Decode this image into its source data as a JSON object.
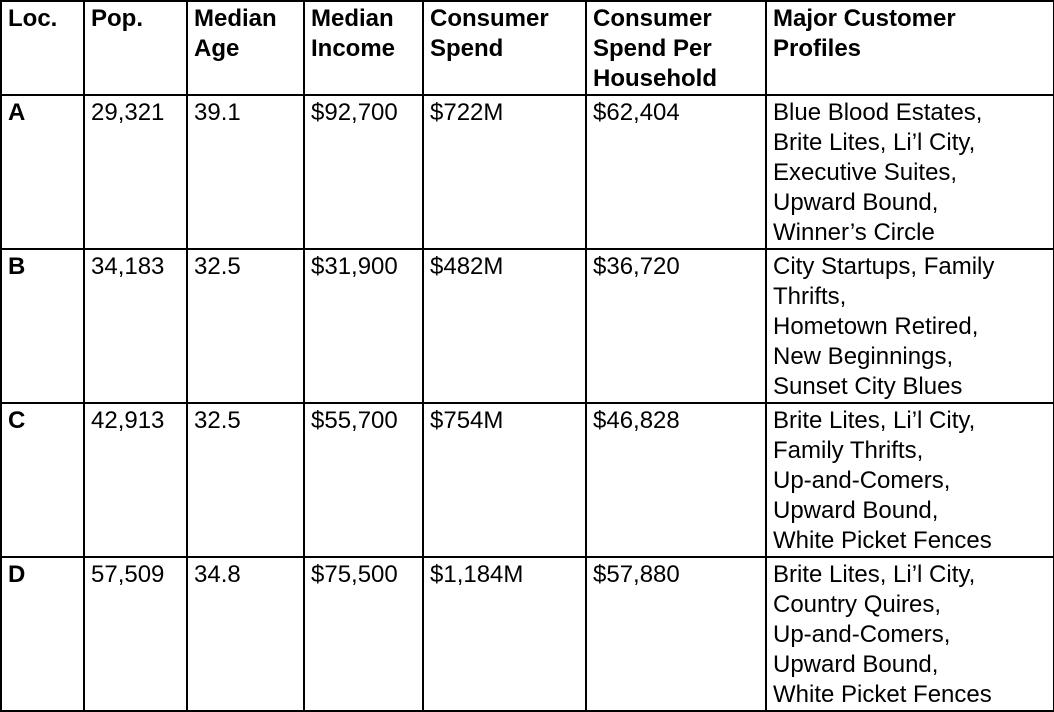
{
  "table": {
    "headers": [
      [
        "Loc."
      ],
      [
        "Pop."
      ],
      [
        "Median",
        "Age"
      ],
      [
        "Median",
        "Income"
      ],
      [
        "Consumer",
        "Spend"
      ],
      [
        "Consumer",
        "Spend Per",
        "Household"
      ],
      [
        "Major Customer",
        "Profiles"
      ]
    ],
    "rows": [
      {
        "loc": "A",
        "pop": "29,321",
        "median_age": "39.1",
        "median_income": "$92,700",
        "consumer_spend": "$722M",
        "spend_per_household": "$62,404",
        "profiles": [
          "Blue Blood Estates,",
          "Brite Lites, Li’l City,",
          "Executive Suites,",
          "Upward Bound,",
          "Winner’s Circle"
        ]
      },
      {
        "loc": "B",
        "pop": "34,183",
        "median_age": "32.5",
        "median_income": "$31,900",
        "consumer_spend": "$482M",
        "spend_per_household": "$36,720",
        "profiles": [
          "City Startups, Family",
          "Thrifts,",
          "Hometown Retired,",
          "New Beginnings,",
          "Sunset City Blues"
        ]
      },
      {
        "loc": "C",
        "pop": "42,913",
        "median_age": "32.5",
        "median_income": "$55,700",
        "consumer_spend": "$754M",
        "spend_per_household": "$46,828",
        "profiles": [
          "Brite Lites, Li’l City,",
          "Family Thrifts,",
          "Up-and-Comers,",
          "Upward Bound,",
          "White Picket Fences"
        ]
      },
      {
        "loc": "D",
        "pop": "57,509",
        "median_age": "34.8",
        "median_income": "$75,500",
        "consumer_spend": "$1,184M",
        "spend_per_household": "$57,880",
        "profiles": [
          "Brite Lites, Li’l City,",
          "Country Quires,",
          "Up-and-Comers,",
          "Upward Bound,",
          "White Picket Fences"
        ]
      }
    ]
  }
}
